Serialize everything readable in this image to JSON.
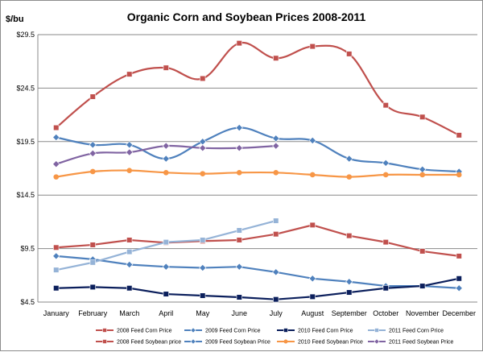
{
  "chart_data": {
    "type": "line",
    "title": "Organic Corn and Soybean Prices 2008-2011",
    "ylabel": "$/bu",
    "xlabel": "",
    "ylim": [
      4.5,
      29.5
    ],
    "yticks": [
      4.5,
      9.5,
      14.5,
      19.5,
      24.5,
      29.5
    ],
    "ytick_labels": [
      "$4.5",
      "$9.5",
      "$14.5",
      "$19.5",
      "$24.5",
      "$29.5"
    ],
    "grid": "horizontal",
    "legend_position": "bottom",
    "categories": [
      "January",
      "February",
      "March",
      "April",
      "May",
      "June",
      "July",
      "August",
      "September",
      "October",
      "November",
      "December"
    ],
    "series": [
      {
        "name": "2008 Feed Corn Price",
        "color": "#C0504D",
        "marker": "square",
        "smooth": false,
        "values": [
          9.6,
          9.85,
          10.3,
          10.05,
          10.2,
          10.3,
          10.85,
          11.7,
          10.7,
          10.1,
          9.25,
          8.8
        ]
      },
      {
        "name": "2009 Feed Corn Price",
        "color": "#4F81BD",
        "marker": "diamond",
        "smooth": false,
        "values": [
          8.8,
          8.5,
          8.0,
          7.8,
          7.7,
          7.8,
          7.3,
          6.7,
          6.4,
          6.0,
          6.0,
          5.8
        ]
      },
      {
        "name": "2010 Feed Corn Price",
        "color": "#0B1F5C",
        "marker": "square",
        "smooth": false,
        "values": [
          5.8,
          5.9,
          5.8,
          5.25,
          5.1,
          4.95,
          4.75,
          5.0,
          5.4,
          5.8,
          6.0,
          6.7
        ]
      },
      {
        "name": "2011 Feed Corn Price",
        "color": "#95B3D7",
        "marker": "square",
        "smooth": false,
        "values": [
          7.5,
          8.2,
          9.2,
          10.1,
          10.3,
          11.2,
          12.1,
          null,
          null,
          null,
          null,
          null
        ]
      },
      {
        "name": "2008 Feed Soybean price",
        "color": "#C0504D",
        "marker": "square",
        "smooth": true,
        "values": [
          20.8,
          23.7,
          25.8,
          26.4,
          25.4,
          28.7,
          27.3,
          28.4,
          27.7,
          22.9,
          21.8,
          20.1
        ]
      },
      {
        "name": "2009 Feed Soybean Price",
        "color": "#4F81BD",
        "marker": "diamond",
        "smooth": true,
        "values": [
          19.9,
          19.2,
          19.2,
          17.9,
          19.5,
          20.8,
          19.8,
          19.6,
          17.9,
          17.5,
          16.9,
          16.7
        ]
      },
      {
        "name": "2010 Feed Soybean Price",
        "color": "#F79646",
        "marker": "circle",
        "smooth": true,
        "values": [
          16.2,
          16.7,
          16.8,
          16.6,
          16.5,
          16.6,
          16.6,
          16.4,
          16.2,
          16.4,
          16.4,
          16.4
        ]
      },
      {
        "name": "2011 Feed Soybean Price",
        "color": "#8064A2",
        "marker": "diamond",
        "smooth": true,
        "values": [
          17.4,
          18.4,
          18.5,
          19.1,
          18.9,
          18.9,
          19.1,
          null,
          null,
          null,
          null,
          null
        ]
      }
    ]
  }
}
